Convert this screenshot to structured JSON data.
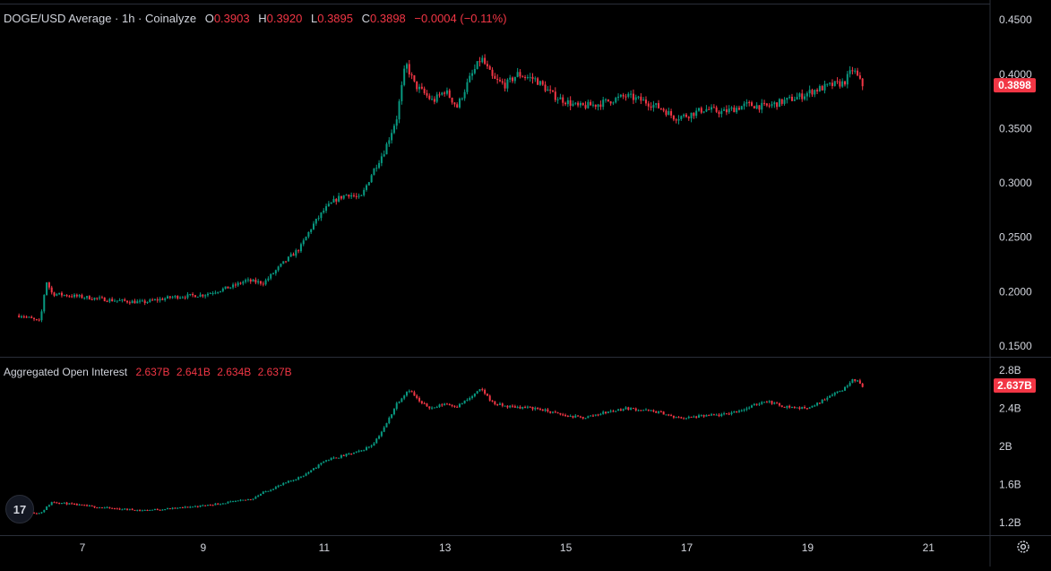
{
  "legend": {
    "title": "DOGE/USD Average · 1h · Coinalyze",
    "open_label": "O",
    "open": "0.3903",
    "high_label": "H",
    "high": "0.3920",
    "low_label": "L",
    "low": "0.3895",
    "close_label": "C",
    "close": "0.3898",
    "change": "−0.0004 (−0.11%)"
  },
  "oi_legend": {
    "title": "Aggregated Open Interest",
    "v1": "2.637B",
    "v2": "2.641B",
    "v3": "2.634B",
    "v4": "2.637B"
  },
  "logo_text": "17",
  "colors": {
    "up": "#089981",
    "down": "#f23645",
    "bg": "#000000",
    "text": "#d1d4dc",
    "grid": "#2a2e39"
  },
  "chart_data": [
    {
      "type": "candlestick",
      "title": "DOGE/USD Average · 1h · Coinalyze",
      "interval": "1h",
      "y_range": [
        0.14,
        0.46
      ],
      "y_ticks": [
        "0.4500",
        "0.4000",
        "0.3500",
        "0.3000",
        "0.2500",
        "0.2000",
        "0.1500"
      ],
      "y_tick_values": [
        0.45,
        0.4,
        0.35,
        0.3,
        0.25,
        0.2,
        0.15
      ],
      "x_ticks": [
        "7",
        "9",
        "11",
        "13",
        "15",
        "17",
        "19",
        "21"
      ],
      "x_tick_days": [
        7,
        9,
        11,
        13,
        15,
        17,
        19,
        21
      ],
      "x_range_days": [
        6.0,
        22.1
      ],
      "last_price_label": "0.3898",
      "last_price": 0.3898,
      "path_days": [
        6.0,
        6.3,
        6.4,
        6.5,
        7.0,
        7.5,
        8.0,
        8.5,
        9.0,
        9.5,
        9.7,
        10.0,
        10.3,
        10.6,
        10.8,
        11.0,
        11.2,
        11.4,
        11.6,
        11.8,
        12.0,
        12.2,
        12.35,
        12.5,
        12.6,
        12.8,
        13.0,
        13.2,
        13.4,
        13.6,
        13.8,
        14.0,
        14.2,
        14.5,
        14.8,
        15.0,
        15.2,
        15.5,
        16.0,
        16.3,
        16.6,
        16.8,
        17.0,
        17.3,
        17.6,
        18.0,
        18.3,
        18.6,
        18.9,
        19.1,
        19.4,
        19.6,
        19.75,
        19.9
      ],
      "path_close": [
        0.178,
        0.172,
        0.21,
        0.198,
        0.195,
        0.192,
        0.19,
        0.195,
        0.197,
        0.205,
        0.21,
        0.208,
        0.225,
        0.24,
        0.26,
        0.275,
        0.285,
        0.29,
        0.285,
        0.31,
        0.33,
        0.36,
        0.41,
        0.39,
        0.385,
        0.375,
        0.385,
        0.37,
        0.395,
        0.415,
        0.395,
        0.39,
        0.4,
        0.395,
        0.38,
        0.375,
        0.37,
        0.372,
        0.38,
        0.375,
        0.368,
        0.36,
        0.362,
        0.368,
        0.365,
        0.372,
        0.37,
        0.375,
        0.38,
        0.385,
        0.39,
        0.392,
        0.405,
        0.3898
      ]
    },
    {
      "type": "candlestick",
      "title": "Aggregated Open Interest",
      "y_range": [
        1.08,
        2.92
      ],
      "y_ticks": [
        "2.8B",
        "2.4B",
        "2B",
        "1.6B",
        "1.2B"
      ],
      "y_tick_values": [
        2.8,
        2.4,
        2.0,
        1.6,
        1.2
      ],
      "last_value_label": "2.637B",
      "last_value": 2.637,
      "path_days": [
        6.0,
        6.3,
        6.5,
        7.0,
        7.5,
        8.0,
        8.5,
        9.0,
        9.5,
        9.8,
        10.0,
        10.3,
        10.6,
        10.8,
        11.0,
        11.3,
        11.6,
        11.8,
        12.0,
        12.2,
        12.4,
        12.6,
        12.8,
        13.0,
        13.2,
        13.4,
        13.6,
        13.8,
        14.0,
        14.5,
        15.0,
        15.3,
        15.6,
        16.0,
        16.3,
        16.6,
        16.8,
        17.0,
        17.3,
        17.6,
        18.0,
        18.3,
        18.6,
        18.9,
        19.1,
        19.4,
        19.6,
        19.75,
        19.9
      ],
      "path_close": [
        1.32,
        1.3,
        1.42,
        1.38,
        1.35,
        1.33,
        1.35,
        1.38,
        1.42,
        1.45,
        1.52,
        1.6,
        1.68,
        1.75,
        1.85,
        1.9,
        1.95,
        2.02,
        2.2,
        2.45,
        2.6,
        2.45,
        2.4,
        2.45,
        2.42,
        2.5,
        2.6,
        2.45,
        2.42,
        2.4,
        2.32,
        2.3,
        2.35,
        2.4,
        2.38,
        2.35,
        2.3,
        2.3,
        2.32,
        2.33,
        2.4,
        2.48,
        2.42,
        2.4,
        2.42,
        2.55,
        2.6,
        2.72,
        2.637
      ]
    }
  ]
}
